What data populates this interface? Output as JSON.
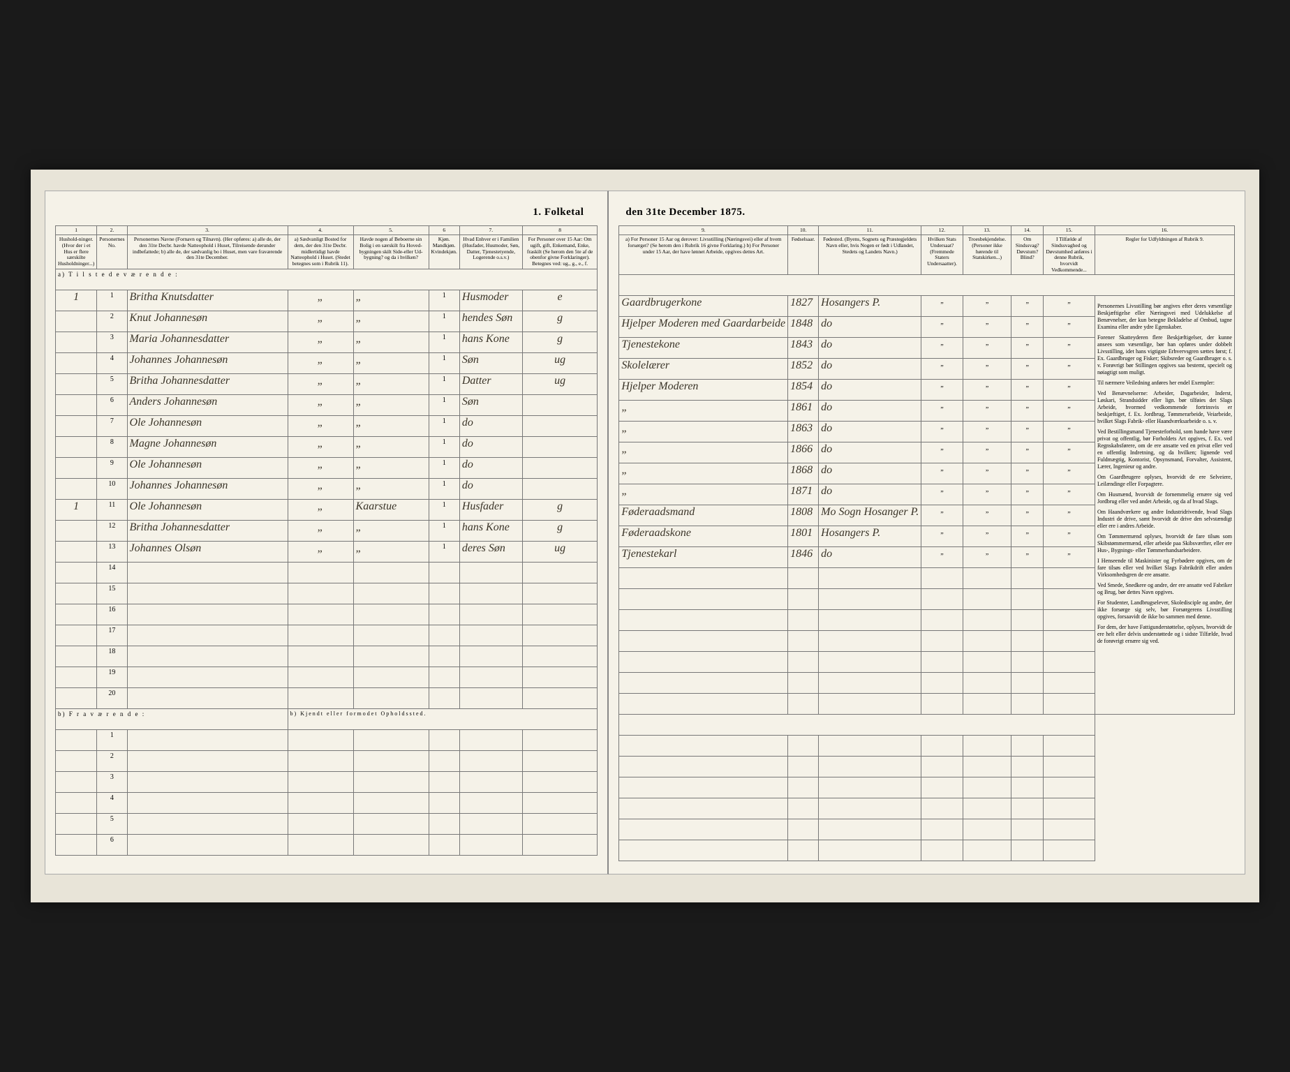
{
  "title_left": "1.  Folketal",
  "title_right": "den 31te December 1875.",
  "columns_left": {
    "c1": "1",
    "c2": "2.",
    "c3": "3.",
    "c4": "4.",
    "c5": "5.",
    "c6": "6",
    "c7": "7.",
    "c8": "8"
  },
  "columns_right": {
    "c9": "9.",
    "c10": "10.",
    "c11": "11.",
    "c12": "12.",
    "c13": "13.",
    "c14": "14.",
    "c15": "15.",
    "c16": "16."
  },
  "headers_left": {
    "h1": "Hushold-ninger. (Hvor der i et Hus er flere særskilte Husholdninger...)",
    "h2": "Personernes No.",
    "h3": "Personernes Navne (Fornavn og Tilnavn).\n(Her opføres:\na) alle de, der den 31te Decbr. havde Natteophold i Huset, Tilreisende derunder indbefattede;\nb) alle de, der sædvanlig bo i Huset, men vare fraværende den 31te December.",
    "h4": "a) Sædvanligt Bosted for dem, der den 31te Decbr. midlertidigt havde Natteophold i Huset. (Stedet betegnes som i Rubrik 11).",
    "h5": "Havde nogen af Beboerne sin Bolig i en særskilt fra Hoved-bygningen skilt Side-eller Ud-bygning? og da i hvilken?",
    "h6": "Kjøn. Mandkjøn. Kvindekjøn.",
    "h7": "Hvad Enhver er i Familien (Husfader, Husmoder, Søn, Datter, Tjenestetyende, Logerende o.s.v.)",
    "h8": "For Personer over 15 Aar: Om ugift, gift, Enkemand, Enke, fraskilt (Se herom den 5te af de obenfor givne Forklaringer). Betegnes ved: ug., g., e., f."
  },
  "headers_right": {
    "h9": "a) For Personer 15 Aar og derover: Livsstilling (Næringsvei) eller af hvem forsørget? (Se herom den i Rubrik 16 givne Forklaring.)\nb) For Personer under 15 Aar, der have lønnet Arbeide, opgives dettes Art.",
    "h10": "Fødselsaar.",
    "h11": "Fødested.\n(Byens, Sognets og Præstegjeldets Navn eller, hvis Nogen er født i Udlandet, Stedets og Landets Navn.)",
    "h12": "Hvilken Stats Undersaat?\n(Fremmede Staters Undersaatter).",
    "h13": "Troesbekjendelse.\n(Personer ikke hørende til Statskirken...)",
    "h14": "Om Sindssvag? Døvstum? Blind?",
    "h15": "I Tilfælde af Sindssvaghed og Døvstumhed anføres i denne Rubrik, hvorvidt Vedkommende...",
    "h16": "Regler for Udfyldningen af Rubrik 9."
  },
  "section_a": "a)  T i l s t e d e v æ r e n d e :",
  "section_b": "b)  F r a v æ r e n d e :",
  "section_b_note": "b) Kjendt eller formodet Opholdssted.",
  "rows": [
    {
      "n": "1",
      "hh": "1",
      "name": "Britha Knutsdatter",
      "c4": "",
      "c5": "",
      "c6": "1",
      "fam": "Husmoder",
      "civ": "e",
      "occ": "Gaardbrugerkone",
      "year": "1827",
      "place": "Hosangers P."
    },
    {
      "n": "2",
      "hh": "",
      "name": "Knut Johannesøn",
      "c4": "",
      "c5": "",
      "c6": "1",
      "fam": "hendes Søn",
      "civ": "g",
      "occ": "Hjelper Moderen med Gaardarbeide",
      "year": "1848",
      "place": "do"
    },
    {
      "n": "3",
      "hh": "",
      "name": "Maria Johannesdatter",
      "c4": "",
      "c5": "",
      "c6": "1",
      "fam": "hans Kone",
      "civ": "g",
      "occ": "Tjenestekone",
      "year": "1843",
      "place": "do"
    },
    {
      "n": "4",
      "hh": "",
      "name": "Johannes Johannesøn",
      "c4": "",
      "c5": "",
      "c6": "1",
      "fam": "Søn",
      "civ": "ug",
      "occ": "Skolelærer",
      "year": "1852",
      "place": "do"
    },
    {
      "n": "5",
      "hh": "",
      "name": "Britha Johannesdatter",
      "c4": "",
      "c5": "",
      "c6": "1",
      "fam": "Datter",
      "civ": "ug",
      "occ": "Hjelper Moderen",
      "year": "1854",
      "place": "do"
    },
    {
      "n": "6",
      "hh": "",
      "name": "Anders Johannesøn",
      "c4": "",
      "c5": "",
      "c6": "1",
      "fam": "Søn",
      "civ": "",
      "occ": "",
      "year": "1861",
      "place": "do"
    },
    {
      "n": "7",
      "hh": "",
      "name": "Ole Johannesøn",
      "c4": "",
      "c5": "",
      "c6": "1",
      "fam": "do",
      "civ": "",
      "occ": "",
      "year": "1863",
      "place": "do"
    },
    {
      "n": "8",
      "hh": "",
      "name": "Magne Johannesøn",
      "c4": "",
      "c5": "",
      "c6": "1",
      "fam": "do",
      "civ": "",
      "occ": "",
      "year": "1866",
      "place": "do"
    },
    {
      "n": "9",
      "hh": "",
      "name": "Ole Johannesøn",
      "c4": "",
      "c5": "",
      "c6": "1",
      "fam": "do",
      "civ": "",
      "occ": "",
      "year": "1868",
      "place": "do"
    },
    {
      "n": "10",
      "hh": "",
      "name": "Johannes Johannesøn",
      "c4": "",
      "c5": "",
      "c6": "1",
      "fam": "do",
      "civ": "",
      "occ": "",
      "year": "1871",
      "place": "do"
    },
    {
      "n": "11",
      "hh": "1",
      "name": "Ole Johannesøn",
      "c4": "",
      "c5": "Kaarstue",
      "c6": "1",
      "fam": "Husfader",
      "civ": "g",
      "occ": "Føderaadsmand",
      "year": "1808",
      "place": "Mo Sogn Hosanger P."
    },
    {
      "n": "12",
      "hh": "",
      "name": "Britha Johannesdatter",
      "c4": "",
      "c5": "",
      "c6": "1",
      "fam": "hans Kone",
      "civ": "g",
      "occ": "Føderaadskone",
      "year": "1801",
      "place": "Hosangers P."
    },
    {
      "n": "13",
      "hh": "",
      "name": "Johannes Olsøn",
      "c4": "",
      "c5": "",
      "c6": "1",
      "fam": "deres Søn",
      "civ": "ug",
      "occ": "Tjenestekarl",
      "year": "1846",
      "place": "do"
    }
  ],
  "empty_a": [
    "14",
    "15",
    "16",
    "17",
    "18",
    "19",
    "20"
  ],
  "empty_b": [
    "1",
    "2",
    "3",
    "4",
    "5",
    "6"
  ],
  "rules": [
    "Personernes Livsstilling bør angives efter deres væsentlige Beskjæftigelse eller Næringsvei med Udelukkelse af Benævnelser, der kun betegne Bekladelse af Ombud, tagne Examina eller andre ydre Egenskaber.",
    "Forener Skatteyderen flere Beskjæftigelser, der kunne ansees som væsentlige, bør han opføres under dobbelt Livsstilling, idet hans vigtigste Erhvervsgren sættes først; f. Ex. Gaardbruger og Fisker; Skibsreder og Gaardbruger o. s. v. Forøvrigt bør Stillingen opgives saa bestemt, specielt og nøiagtigt som muligt.",
    "Til nærmere Veiledning anføres her endel Exempler:",
    "Ved Benævnelserne: Arbeider, Dagarbeider, Inderst, Løskari, Strandsidder eller lign. bør tilføies det Slags Arbeide, hvormed vedkommende fortrinsvis er beskjæftiget, f. Ex. Jordbrug, Tømmerarbeide, Veiarbeide, hvilket Slags Fabrik- eller Haandværksarbeide o. s. v.",
    "Ved Bestillingsmand Tjenesteforhold, som hande have være privat og offentlig, bør Forholdets Art opgives, f. Ex. ved Regnskabsførere, om de ere ansatte ved en privat eller ved en offentlig Indretning, og da hvilken; lignende ved Fuldmægtig, Kontorist, Opsynsmand, Forvalter, Assistent, Lærer, Ingenieur og andre.",
    "Om Gaardbrugere oplyses, hvorvidt de ere Selveiere, Leilændinge eller Forpagtere.",
    "Om Husmænd, hvorvidt de fornemmelig ernære sig ved Jordbrug eller ved andet Arbeide, og da af hvad Slags.",
    "Om Haandværkere og andre Industridrivende, hvad Slags Industri de drive, samt hvorvidt de drive den selvstændigt eller ere i andres Arbeide.",
    "Om Tømmermænd oplyses, hvorvidt de fare tilsøs som Skibstømmermænd, eller arbeide paa Skibsværfter, eller ere Hus-, Bygnings- eller Tømmerhandsarbeidere.",
    "I Henseende til Maskinister og Fyrbødere opgives, om de fare tilsøs eller ved hvilket Slags Fabrikdrift eller anden Virksomhedsgren de ere ansatte.",
    "Ved Smede, Snedkere og andre, der ere ansatte ved Fabriker og Brug, bør dettes Navn opgives.",
    "For Studenter, Landbrugselever, Skoledisciple og andre, der ikke forsørge sig selv, bør Forsørgerens Livsstilling opgives, forsaavidt de ikke bo sammen med denne.",
    "For dem, der have Fattigunderstøttelse, oplyses, hvorvidt de ere helt eller delvis understøttede og i sidste Tilfælde, hvad de forøvrigt ernære sig ved."
  ]
}
